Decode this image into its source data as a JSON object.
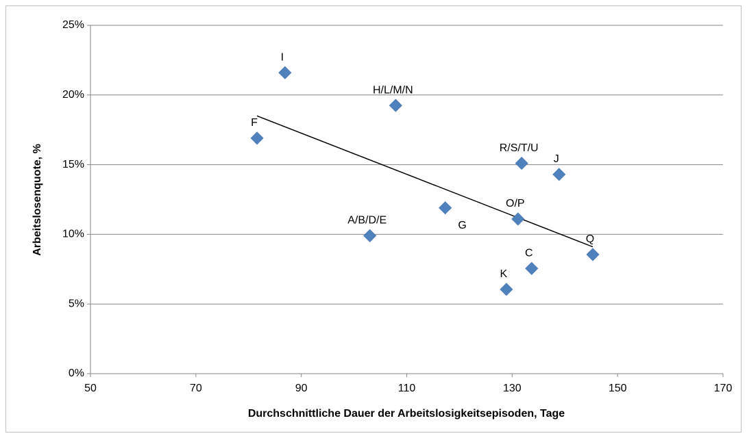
{
  "chart_data": {
    "type": "scatter",
    "x_label": "Durchschnittliche Dauer der Arbeitslosigkeitsepisoden, Tage",
    "y_label": "Arbeitslosenquote, %",
    "point_labels": [
      "I",
      "H/L/M/N",
      "F",
      "R/S/T/U",
      "J",
      "G",
      "O/P",
      "A/B/D/E",
      "Q",
      "C",
      "K"
    ],
    "x": [
      86.9,
      107.9,
      81.6,
      131.8,
      138.9,
      117.3,
      131.1,
      103.0,
      145.3,
      133.7,
      128.9
    ],
    "values": [
      21.6,
      19.25,
      16.9,
      15.1,
      14.3,
      11.9,
      11.1,
      9.9,
      8.55,
      7.55,
      6.05
    ],
    "color": "#4f81bd",
    "trendline": {
      "x": [
        81.6,
        145.3
      ],
      "y": [
        18.5,
        9.1
      ],
      "color": "#000000"
    },
    "xlim": [
      50,
      170
    ],
    "xticks": [
      50,
      70,
      90,
      110,
      130,
      150,
      170
    ],
    "ylim": [
      0,
      25
    ],
    "yticks": [
      {
        "value": 0,
        "label": "0%"
      },
      {
        "value": 5,
        "label": "5%"
      },
      {
        "value": 10,
        "label": "10%"
      },
      {
        "value": 15,
        "label": "15%"
      },
      {
        "value": 20,
        "label": "20%"
      },
      {
        "value": 25,
        "label": "25%"
      }
    ],
    "grid": true
  }
}
